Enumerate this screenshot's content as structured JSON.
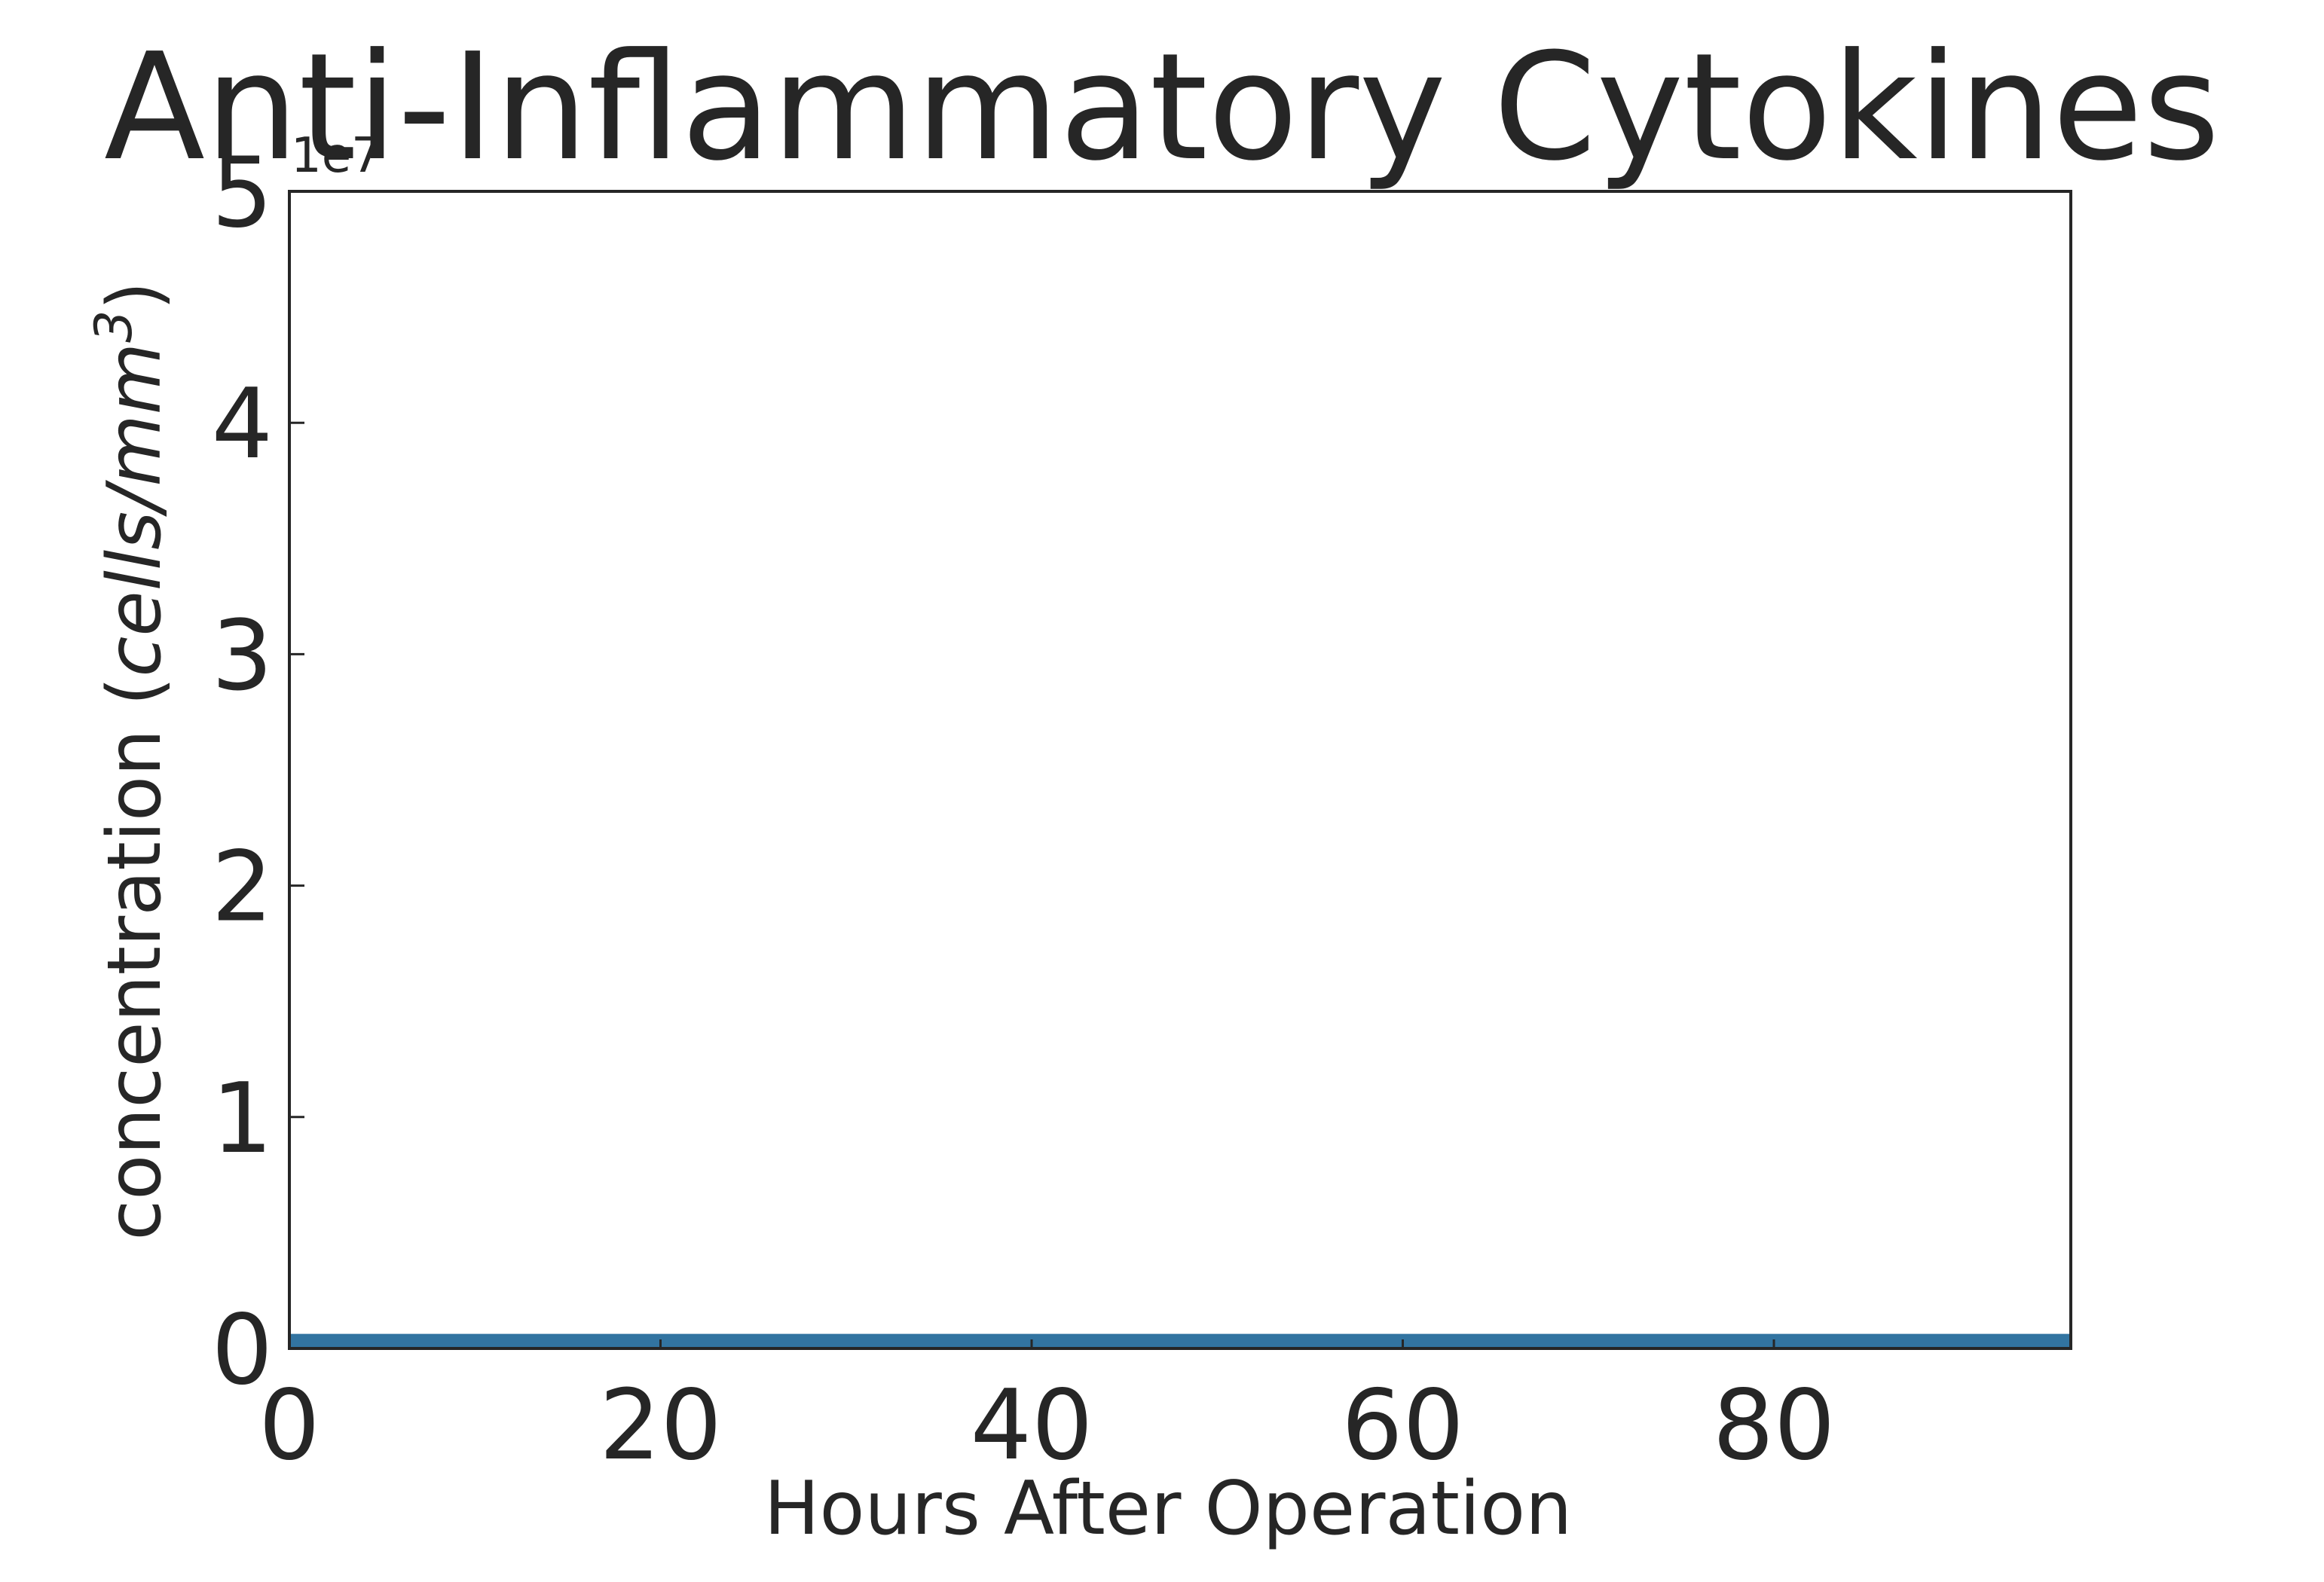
{
  "chart_data": {
    "type": "area",
    "title": "Anti-Inflammatory Cytokines",
    "xlabel": "Hours After Operation",
    "ylabel": {
      "prefix": "concentration (",
      "unit_main": "cells/mm",
      "unit_exp": "3",
      "suffix": ")"
    },
    "y_offset_text": "1e7",
    "xlim": [
      0,
      96
    ],
    "ylim": [
      0,
      50000000
    ],
    "x_ticks": [
      {
        "value": 0,
        "label": "0"
      },
      {
        "value": 20,
        "label": "20"
      },
      {
        "value": 40,
        "label": "40"
      },
      {
        "value": 60,
        "label": "60"
      },
      {
        "value": 80,
        "label": "80"
      }
    ],
    "y_ticks": [
      {
        "value": 0,
        "label": "0"
      },
      {
        "value": 10000000,
        "label": "1"
      },
      {
        "value": 20000000,
        "label": "2"
      },
      {
        "value": 30000000,
        "label": "3"
      },
      {
        "value": 40000000,
        "label": "4"
      },
      {
        "value": 50000000,
        "label": "5"
      }
    ],
    "series": [
      {
        "color": "#3274a1",
        "x": [
          0,
          96
        ],
        "y": [
          600000,
          600000
        ]
      }
    ],
    "grid": false,
    "legend": null
  }
}
